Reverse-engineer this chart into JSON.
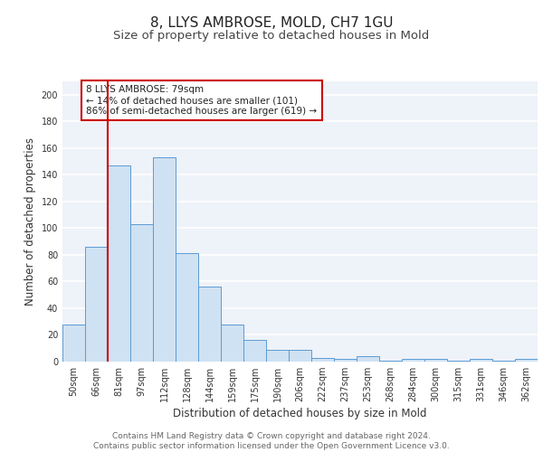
{
  "title1": "8, LLYS AMBROSE, MOLD, CH7 1GU",
  "title2": "Size of property relative to detached houses in Mold",
  "xlabel": "Distribution of detached houses by size in Mold",
  "ylabel": "Number of detached properties",
  "bar_labels": [
    "50sqm",
    "66sqm",
    "81sqm",
    "97sqm",
    "112sqm",
    "128sqm",
    "144sqm",
    "159sqm",
    "175sqm",
    "190sqm",
    "206sqm",
    "222sqm",
    "237sqm",
    "253sqm",
    "268sqm",
    "284sqm",
    "300sqm",
    "315sqm",
    "331sqm",
    "346sqm",
    "362sqm"
  ],
  "bar_values": [
    28,
    86,
    147,
    103,
    153,
    81,
    56,
    28,
    16,
    9,
    9,
    3,
    2,
    4,
    1,
    2,
    2,
    1,
    2,
    1,
    2
  ],
  "bar_color": "#cfe2f3",
  "bar_edge_color": "#5b9bd5",
  "vline_color": "#cc0000",
  "annotation_text": "8 LLYS AMBROSE: 79sqm\n← 14% of detached houses are smaller (101)\n86% of semi-detached houses are larger (619) →",
  "annotation_box_color": "#ffffff",
  "annotation_box_edge": "#cc0000",
  "ylim": [
    0,
    210
  ],
  "yticks": [
    0,
    20,
    40,
    60,
    80,
    100,
    120,
    140,
    160,
    180,
    200
  ],
  "footer_text": "Contains HM Land Registry data © Crown copyright and database right 2024.\nContains public sector information licensed under the Open Government Licence v3.0.",
  "background_color": "#eef2f9",
  "grid_color": "#ffffff",
  "title_fontsize": 11,
  "subtitle_fontsize": 9.5,
  "axis_label_fontsize": 8.5,
  "tick_fontsize": 7,
  "footer_fontsize": 6.5,
  "annotation_fontsize": 7.5
}
